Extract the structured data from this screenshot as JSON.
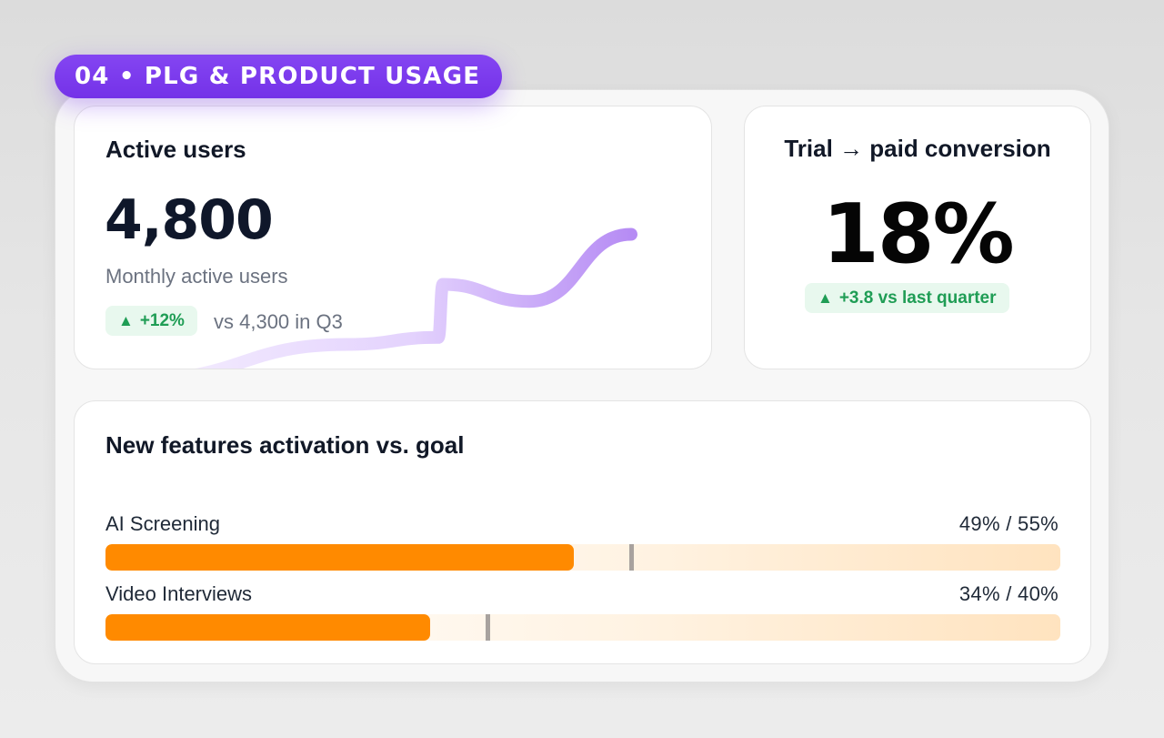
{
  "section": {
    "label": "04 • PLG & PRODUCT USAGE"
  },
  "active_users": {
    "title": "Active users",
    "value": "4,800",
    "subtitle": "Monthly active users",
    "delta": "+12%",
    "comparison": "vs 4,300 in Q3",
    "sparkline_trend": [
      0,
      0.35,
      0.42,
      0.95,
      0.78,
      1.45
    ]
  },
  "trial_conversion": {
    "title": "Trial → paid conversion",
    "value": "18%",
    "delta": "+3.8 vs last quarter"
  },
  "features": {
    "title": "New features activation vs. goal",
    "items": [
      {
        "name": "AI Screening",
        "value_label": "49% / 55%",
        "actual": 49,
        "goal": 55
      },
      {
        "name": "Video Interviews",
        "value_label": "34% / 40%",
        "actual": 34,
        "goal": 40
      }
    ]
  },
  "colors": {
    "accent_purple": "#7c3aed",
    "positive_green": "#1f9d55",
    "bar_orange": "#ff8a00",
    "goal_marker": "#a8a29e"
  },
  "icons": {
    "delta_up": "triangle-up-icon"
  }
}
